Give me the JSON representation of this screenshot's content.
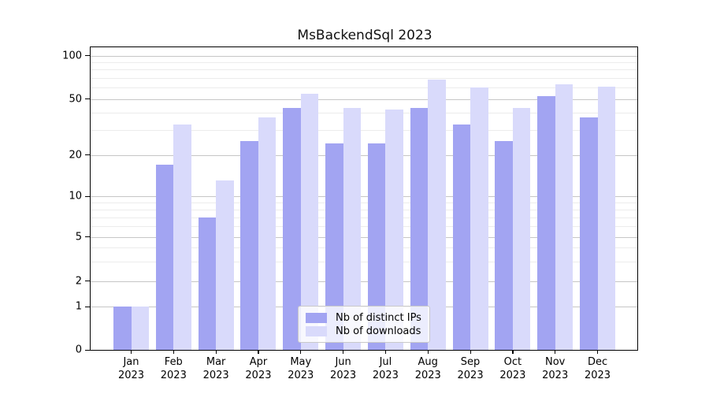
{
  "chart_data": {
    "type": "bar",
    "title": "MsBackendSql 2023",
    "categories": [
      "Jan 2023",
      "Feb 2023",
      "Mar 2023",
      "Apr 2023",
      "May 2023",
      "Jun 2023",
      "Jul 2023",
      "Aug 2023",
      "Sep 2023",
      "Oct 2023",
      "Nov 2023",
      "Dec 2023"
    ],
    "series": [
      {
        "name": "Nb of distinct IPs",
        "color": "#a2a4f2",
        "values": [
          1,
          17,
          7,
          25,
          43,
          24,
          24,
          43,
          33,
          25,
          52,
          37
        ]
      },
      {
        "name": "Nb of downloads",
        "color": "#d9dafb",
        "values": [
          1,
          33,
          13,
          37,
          54,
          43,
          42,
          68,
          60,
          43,
          63,
          61
        ]
      }
    ],
    "yscale": "log (linear below 1)",
    "ylim": [
      0,
      115
    ],
    "y_major_ticks": [
      0,
      1,
      2,
      5,
      10,
      20,
      50,
      100
    ],
    "y_major_tick_labels": [
      "0",
      "1",
      "2",
      "5",
      "10",
      "20",
      "50",
      "100"
    ],
    "y_minor_ticks": [
      3,
      4,
      6,
      7,
      8,
      9,
      30,
      40,
      60,
      70,
      80,
      90
    ],
    "grid": "major and minor horizontal gridlines",
    "legend_position": "inside lower center",
    "xlabel": "",
    "ylabel": ""
  },
  "legend": {
    "entry1": "Nb of distinct IPs",
    "entry2": "Nb of downloads"
  },
  "colors": {
    "series1": "#a2a4f2",
    "series2": "#d9dafb",
    "major_grid": "#c6c6c6",
    "minor_grid": "#ececec",
    "axis": "#000000",
    "background": "#ffffff"
  }
}
